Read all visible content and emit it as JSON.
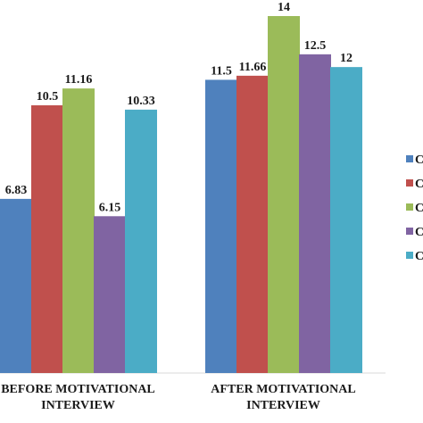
{
  "chart_data": {
    "type": "bar",
    "categories": [
      [
        "BEFORE MOTIVATIONAL",
        "INTERVIEW"
      ],
      [
        "AFTER MOTIVATIONAL",
        "INTERVIEW"
      ]
    ],
    "series": [
      {
        "name": "C",
        "color": "#4f81bd",
        "values": [
          6.83,
          11.5
        ]
      },
      {
        "name": "C",
        "color": "#c0504d",
        "values": [
          10.5,
          11.66
        ]
      },
      {
        "name": "C",
        "color": "#9bbb59",
        "values": [
          11.16,
          14
        ]
      },
      {
        "name": "C",
        "color": "#8064a2",
        "values": [
          6.15,
          12.5
        ]
      },
      {
        "name": "C",
        "color": "#4bacc6",
        "values": [
          10.33,
          12
        ]
      }
    ],
    "value_labels": [
      [
        "6.83",
        "11.5"
      ],
      [
        "10.5",
        "11.66"
      ],
      [
        "11.16",
        "14"
      ],
      [
        "6.15",
        "12.5"
      ],
      [
        "10.33",
        "12"
      ]
    ],
    "ylim": [
      0,
      14
    ],
    "grid": false,
    "legend": "right"
  }
}
